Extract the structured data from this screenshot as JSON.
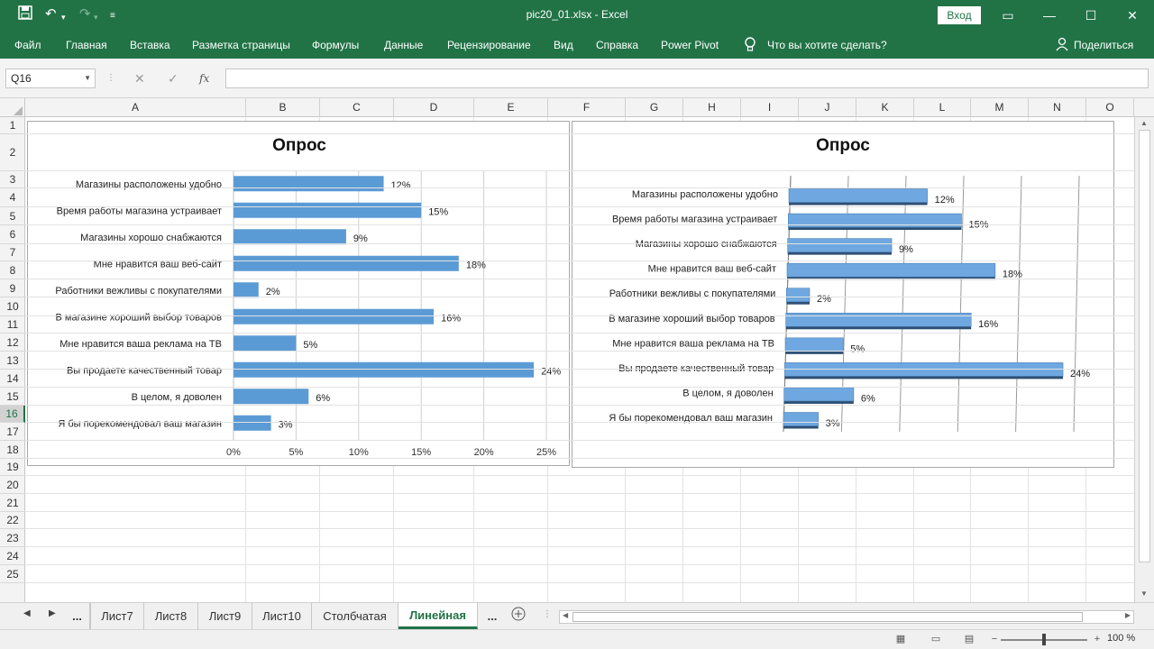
{
  "window": {
    "title": "pic20_01.xlsx  -  Excel",
    "signin_label": "Вход"
  },
  "ribbon": {
    "tabs": [
      "Файл",
      "Главная",
      "Вставка",
      "Разметка страницы",
      "Формулы",
      "Данные",
      "Рецензирование",
      "Вид",
      "Справка",
      "Power Pivot"
    ],
    "tell_me": "Что вы хотите сделать?",
    "share": "Поделиться"
  },
  "formula_bar": {
    "name_box": "Q16",
    "fx_label": "fx",
    "value": ""
  },
  "columns": [
    "A",
    "B",
    "C",
    "D",
    "E",
    "F",
    "G",
    "H",
    "I",
    "J",
    "K",
    "L",
    "M",
    "N",
    "O"
  ],
  "rows": [
    "1",
    "2",
    "3",
    "4",
    "5",
    "6",
    "7",
    "8",
    "9",
    "10",
    "11",
    "12",
    "13",
    "14",
    "15",
    "16",
    "17",
    "18",
    "19",
    "20",
    "21",
    "22",
    "23",
    "24",
    "25"
  ],
  "selected_row": "16",
  "chart_data": [
    {
      "type": "bar",
      "orientation": "horizontal",
      "title": "Опрос",
      "categories": [
        "Магазины расположены удобно",
        "Время работы магазина устраивает",
        "Магазины хорошо снабжаются",
        "Мне нравится ваш веб-сайт",
        "Работники вежливы с покупателями",
        "В магазине хороший выбор товаров",
        "Мне нравится ваша реклама на ТВ",
        "Вы продаете качественный товар",
        "В целом, я доволен",
        "Я бы порекомендовал ваш магазин"
      ],
      "values": [
        12,
        15,
        9,
        18,
        2,
        16,
        5,
        24,
        6,
        3
      ],
      "data_labels": [
        "12%",
        "15%",
        "9%",
        "18%",
        "2%",
        "16%",
        "5%",
        "24%",
        "6%",
        "3%"
      ],
      "x_ticks": [
        "0%",
        "5%",
        "10%",
        "15%",
        "20%",
        "25%"
      ],
      "xlim": [
        0,
        25
      ],
      "grid": true,
      "bar_color": "#5b9bd5"
    },
    {
      "type": "bar",
      "orientation": "horizontal",
      "style": "3d",
      "title": "Опрос",
      "categories": [
        "Магазины расположены удобно",
        "Время работы магазина устраивает",
        "Магазины хорошо снабжаются",
        "Мне нравится ваш веб-сайт",
        "Работники вежливы с покупателями",
        "В магазине хороший выбор товаров",
        "Мне нравится ваша реклама на ТВ",
        "Вы продаете качественный товар",
        "В целом, я доволен",
        "Я бы порекомендовал ваш магазин"
      ],
      "values": [
        12,
        15,
        9,
        18,
        2,
        16,
        5,
        24,
        6,
        3
      ],
      "data_labels": [
        "12%",
        "15%",
        "9%",
        "18%",
        "2%",
        "16%",
        "5%",
        "24%",
        "6%",
        "3%"
      ],
      "xlim": [
        0,
        25
      ],
      "grid": true,
      "bar_color": "#6fa8e0"
    }
  ],
  "sheet_tabs": {
    "items": [
      "Лист7",
      "Лист8",
      "Лист9",
      "Лист10",
      "Столбчатая",
      "Линейная"
    ],
    "active": "Линейная",
    "more_label": "..."
  },
  "status": {
    "zoom": "100 %"
  },
  "colors": {
    "excel_green": "#217346"
  }
}
